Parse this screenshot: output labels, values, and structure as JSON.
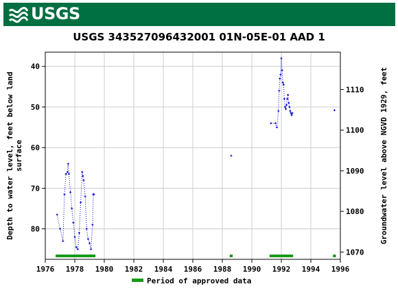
{
  "header": {
    "logo_text": "USGS",
    "logo_icon": "usgs-wave-logo-icon",
    "brand_color": "#006f41"
  },
  "chart_data": {
    "type": "scatter",
    "title": "USGS 343527096432001 01N-05E-01 AAD 1",
    "ylabel_left": "Depth to water level, feet below land surface",
    "ylabel_left_lines": [
      "Depth to water level, feet below land",
      "surface"
    ],
    "ylabel_right": "Groundwater level above NGVD 1929, feet",
    "xlim": [
      1976,
      1996
    ],
    "ylim_left": [
      87.5,
      36.5
    ],
    "ylim_right": [
      1068.2,
      1119.2
    ],
    "x_ticks": [
      "1976",
      "1978",
      "1980",
      "1982",
      "1984",
      "1986",
      "1988",
      "1990",
      "1992",
      "1994",
      "1996"
    ],
    "y_ticks_left": [
      "40",
      "50",
      "60",
      "70",
      "80"
    ],
    "y_ticks_right": [
      "1070",
      "1080",
      "1090",
      "1100",
      "1110"
    ],
    "grid": true,
    "series": [
      {
        "name": "",
        "color": "#0000cc",
        "marker": "plus",
        "line_style": "dotted",
        "segments": [
          {
            "x": [
              1976.8,
              1977.0,
              1977.2,
              1977.3,
              1977.4,
              1977.5,
              1977.55,
              1977.6,
              1977.7,
              1977.8,
              1977.9,
              1978.0,
              1978.1,
              1978.2,
              1978.3,
              1978.4,
              1978.5,
              1978.55,
              1978.6,
              1978.7,
              1978.8,
              1978.9,
              1979.0,
              1979.1,
              1979.2,
              1979.25,
              1979.3
            ],
            "y": [
              76.5,
              80.0,
              83.0,
              71.5,
              66.5,
              66.0,
              64.0,
              66.5,
              71.0,
              75.0,
              78.5,
              82.0,
              84.5,
              85.0,
              81.0,
              73.5,
              66.0,
              67.0,
              68.0,
              72.0,
              80.0,
              82.5,
              83.5,
              85.0,
              79.0,
              71.5,
              71.5
            ]
          },
          {
            "x": [
              1988.6
            ],
            "y": [
              62.0
            ]
          },
          {
            "x": [
              1991.3,
              1991.6,
              1991.7,
              1991.8,
              1991.85,
              1991.9,
              1991.95,
              1992.0,
              1992.05,
              1992.1,
              1992.15,
              1992.2,
              1992.25,
              1992.3,
              1992.35,
              1992.4,
              1992.45,
              1992.5,
              1992.55,
              1992.6,
              1992.65,
              1992.7,
              1992.75
            ],
            "y": [
              54.0,
              54.0,
              55.0,
              51.0,
              46.0,
              43.0,
              42.0,
              38.0,
              41.0,
              44.0,
              44.5,
              48.0,
              50.0,
              50.5,
              49.5,
              48.0,
              47.0,
              49.0,
              50.0,
              51.0,
              51.5,
              52.0,
              51.5
            ]
          },
          {
            "x": [
              1995.6
            ],
            "y": [
              50.8
            ]
          }
        ]
      }
    ],
    "approved_periods": [
      [
        1976.7,
        1979.4
      ],
      [
        1988.5,
        1988.7
      ],
      [
        1991.2,
        1992.8
      ],
      [
        1995.5,
        1995.7
      ]
    ],
    "approved_color": "#1a9a1a",
    "legend": {
      "label": "Period of approved data",
      "position": "bottom-center"
    }
  }
}
